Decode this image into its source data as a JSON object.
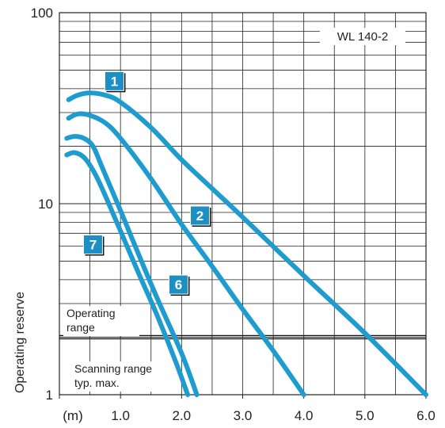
{
  "chart_data": {
    "type": "line",
    "title": "",
    "model_label": "WL 140-2",
    "ylabel": "Operating reserve",
    "xlabel": "",
    "x_unit_label": "(m)",
    "y_scale": "log",
    "ylim": [
      1,
      100
    ],
    "xlim": [
      0,
      6.0
    ],
    "x_ticks": [
      "1.0",
      "2.0",
      "3.0",
      "4.0",
      "5.0",
      "6.0"
    ],
    "y_ticks": [
      "100",
      "10",
      "1"
    ],
    "grid": true,
    "threshold": {
      "value": 2,
      "label_above": [
        "Operating",
        "range"
      ],
      "label_below": [
        "Scanning range",
        "typ. max."
      ]
    },
    "series": [
      {
        "name": "1",
        "x": [
          0.15,
          0.3,
          0.5,
          0.75,
          1.0,
          1.5,
          2.0,
          2.5,
          3.0,
          4.0,
          5.0,
          6.0
        ],
        "y": [
          35,
          37,
          38,
          37,
          34,
          25,
          17,
          12,
          8.5,
          4.2,
          2.1,
          1.0
        ]
      },
      {
        "name": "2",
        "x": [
          0.15,
          0.3,
          0.5,
          0.75,
          1.0,
          1.5,
          2.0,
          2.5,
          3.0,
          3.5,
          4.0
        ],
        "y": [
          28,
          29.5,
          29,
          26.5,
          22,
          13.5,
          7.8,
          4.7,
          2.8,
          1.7,
          1.0
        ]
      },
      {
        "name": "6",
        "x": [
          0.12,
          0.25,
          0.4,
          0.55,
          0.7,
          1.0,
          1.3,
          1.6,
          2.0,
          2.25
        ],
        "y": [
          22,
          22.5,
          22,
          20,
          15.5,
          9.2,
          5.4,
          3.2,
          1.65,
          1.0
        ]
      },
      {
        "name": "7",
        "x": [
          0.12,
          0.25,
          0.4,
          0.55,
          0.7,
          1.0,
          1.3,
          1.6,
          1.9,
          2.1
        ],
        "y": [
          18,
          18.5,
          17.5,
          15,
          12,
          7.2,
          4.3,
          2.6,
          1.5,
          1.0
        ]
      }
    ],
    "label_positions": [
      {
        "name": "1",
        "x": 0.9,
        "y": 43
      },
      {
        "name": "2",
        "x": 2.3,
        "y": 8.5
      },
      {
        "name": "6",
        "x": 1.95,
        "y": 3.7
      },
      {
        "name": "7",
        "x": 0.55,
        "y": 6.0
      }
    ],
    "colors": {
      "curve": "#1e9ccf",
      "badge": "#1e8fc4",
      "grid": "#222222"
    }
  }
}
